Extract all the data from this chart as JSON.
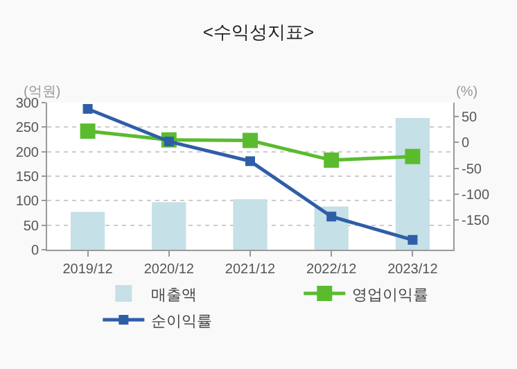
{
  "chart_data": {
    "type": "bar",
    "title": "<수익성지표>",
    "ylabel": "(억원)",
    "y2label": "(%)",
    "categories": [
      "2019/12",
      "2020/12",
      "2021/12",
      "2022/12",
      "2023/12"
    ],
    "series": [
      {
        "name": "매출액",
        "color": "#c5e0e6",
        "values": [
          77,
          97,
          103,
          88,
          269
        ]
      },
      {
        "name": "영업이익률",
        "type": "line",
        "axis": "y2",
        "color": "#5bbb2e",
        "marker": "square",
        "values": [
          22,
          5,
          4,
          -34,
          -27
        ]
      },
      {
        "name": "순이익률",
        "type": "line",
        "axis": "y2",
        "color": "#2f5ea8",
        "marker": "square",
        "values": [
          65,
          2,
          -36,
          -143,
          -188
        ]
      }
    ],
    "ylim": [
      0,
      300
    ],
    "yticks": [
      0,
      50,
      100,
      150,
      200,
      250,
      300
    ],
    "y2lim": [
      -207,
      77
    ],
    "y2ticks": [
      -150,
      -100,
      -50,
      0,
      50
    ],
    "grid": "y",
    "legend": "bottom"
  }
}
